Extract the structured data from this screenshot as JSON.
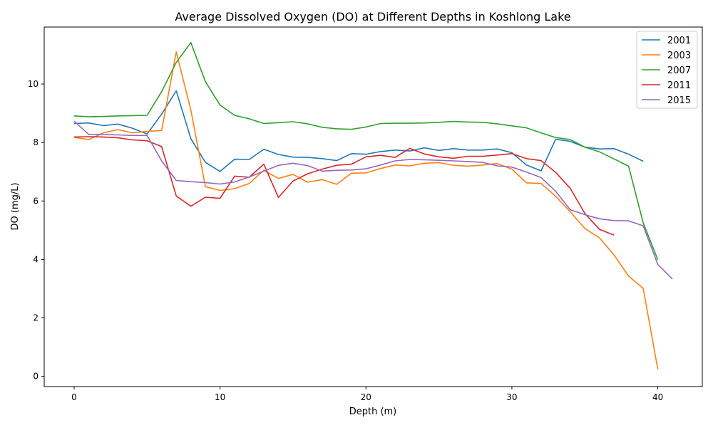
{
  "chart_data": {
    "type": "line",
    "title": "Average Dissolved Oxygen (DO) at Different Depths in Koshlong Lake",
    "xlabel": "Depth (m)",
    "ylabel": "DO (mg/L)",
    "xlim": [
      -2.05,
      43.05
    ],
    "ylim": [
      -0.35,
      11.95
    ],
    "xticks": [
      0,
      10,
      20,
      30,
      40
    ],
    "yticks": [
      0,
      2,
      4,
      6,
      8,
      10
    ],
    "grid": false,
    "legend_position": "top-right",
    "series": [
      {
        "name": "2001",
        "color": "#1f77b4",
        "x": [
          0,
          1,
          2,
          3,
          4,
          5,
          6,
          7,
          8,
          9,
          10,
          11,
          12,
          13,
          14,
          15,
          16,
          17,
          18,
          19,
          20,
          21,
          22,
          23,
          24,
          25,
          26,
          27,
          28,
          29,
          30,
          31,
          32,
          33,
          34,
          35,
          36,
          37,
          38,
          39
        ],
        "values": [
          8.65,
          8.67,
          8.58,
          8.63,
          8.49,
          8.29,
          8.97,
          9.77,
          8.13,
          7.32,
          7.01,
          7.43,
          7.42,
          7.77,
          7.59,
          7.5,
          7.49,
          7.45,
          7.38,
          7.62,
          7.6,
          7.69,
          7.74,
          7.71,
          7.82,
          7.73,
          7.79,
          7.74,
          7.74,
          7.78,
          7.65,
          7.23,
          7.03,
          8.11,
          8.04,
          7.84,
          7.78,
          7.79,
          7.6,
          7.36
        ]
      },
      {
        "name": "2003",
        "color": "#ff7f0e",
        "x": [
          0,
          1,
          2,
          3,
          4,
          5,
          6,
          7,
          8,
          9,
          10,
          11,
          12,
          13,
          14,
          15,
          16,
          17,
          18,
          19,
          20,
          21,
          22,
          23,
          24,
          25,
          26,
          27,
          28,
          29,
          30,
          31,
          32,
          33,
          34,
          35,
          36,
          37,
          38,
          39,
          40
        ],
        "values": [
          8.18,
          8.1,
          8.33,
          8.44,
          8.33,
          8.38,
          8.41,
          11.1,
          9.11,
          6.49,
          6.36,
          6.42,
          6.6,
          7.05,
          6.77,
          6.91,
          6.64,
          6.73,
          6.57,
          6.95,
          6.96,
          7.11,
          7.23,
          7.2,
          7.29,
          7.31,
          7.22,
          7.19,
          7.23,
          7.28,
          7.09,
          6.62,
          6.6,
          6.16,
          5.63,
          5.06,
          4.74,
          4.15,
          3.43,
          3.01,
          0.24
        ]
      },
      {
        "name": "2007",
        "color": "#2ca02c",
        "x": [
          0,
          1,
          2,
          3,
          4,
          5,
          6,
          7,
          8,
          9,
          10,
          11,
          12,
          13,
          14,
          15,
          16,
          17,
          18,
          19,
          20,
          21,
          22,
          23,
          24,
          25,
          26,
          27,
          28,
          29,
          30,
          31,
          32,
          33,
          34,
          35,
          36,
          37,
          38,
          39,
          40
        ],
        "values": [
          8.91,
          8.88,
          8.89,
          8.91,
          8.92,
          8.93,
          9.74,
          10.74,
          11.42,
          10.08,
          9.28,
          8.93,
          8.81,
          8.65,
          8.68,
          8.71,
          8.64,
          8.52,
          8.47,
          8.45,
          8.53,
          8.65,
          8.66,
          8.66,
          8.67,
          8.69,
          8.72,
          8.7,
          8.69,
          8.64,
          8.57,
          8.5,
          8.33,
          8.17,
          8.1,
          7.84,
          7.68,
          7.44,
          7.19,
          5.25,
          3.99
        ]
      },
      {
        "name": "2011",
        "color": "#d62728",
        "x": [
          0,
          1,
          2,
          3,
          4,
          5,
          6,
          7,
          8,
          9,
          10,
          11,
          12,
          13,
          14,
          15,
          16,
          17,
          18,
          19,
          20,
          21,
          22,
          23,
          24,
          25,
          26,
          27,
          28,
          29,
          30,
          31,
          32,
          33,
          34,
          35,
          36,
          37
        ],
        "values": [
          8.19,
          8.2,
          8.19,
          8.16,
          8.09,
          8.06,
          7.86,
          6.17,
          5.82,
          6.13,
          6.09,
          6.85,
          6.81,
          7.26,
          6.12,
          6.68,
          6.93,
          7.09,
          7.22,
          7.26,
          7.51,
          7.56,
          7.49,
          7.8,
          7.61,
          7.51,
          7.46,
          7.53,
          7.53,
          7.57,
          7.62,
          7.45,
          7.38,
          6.98,
          6.43,
          5.57,
          5.03,
          4.83
        ]
      },
      {
        "name": "2015",
        "color": "#9467bd",
        "x": [
          0,
          1,
          2,
          3,
          4,
          5,
          6,
          7,
          8,
          9,
          10,
          11,
          12,
          13,
          14,
          15,
          16,
          17,
          18,
          19,
          20,
          21,
          22,
          23,
          24,
          25,
          26,
          27,
          28,
          29,
          30,
          31,
          32,
          33,
          34,
          35,
          36,
          37,
          38,
          39,
          40,
          41
        ],
        "values": [
          8.73,
          8.28,
          8.27,
          8.26,
          8.24,
          8.24,
          7.37,
          6.7,
          6.66,
          6.63,
          6.58,
          6.65,
          6.82,
          7.02,
          7.22,
          7.29,
          7.21,
          7.02,
          7.05,
          7.06,
          7.1,
          7.23,
          7.37,
          7.42,
          7.41,
          7.39,
          7.37,
          7.35,
          7.32,
          7.2,
          7.16,
          6.99,
          6.8,
          6.33,
          5.7,
          5.53,
          5.39,
          5.33,
          5.32,
          5.15,
          3.83,
          3.33
        ]
      }
    ]
  }
}
